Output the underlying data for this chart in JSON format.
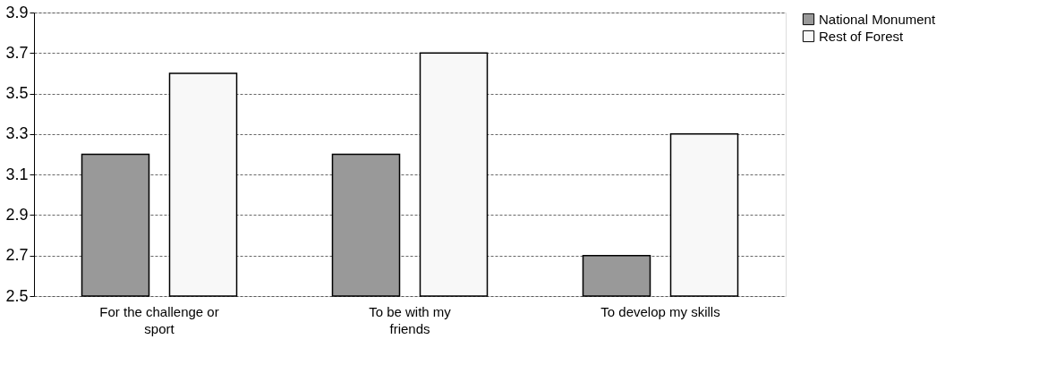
{
  "chart_data": {
    "type": "bar",
    "categories": [
      "For the challenge or sport",
      "To be with my friends",
      "To develop my skills"
    ],
    "series": [
      {
        "name": "National Monument",
        "color": "#999999",
        "values": [
          3.2,
          3.2,
          2.7
        ]
      },
      {
        "name": "Rest of Forest",
        "color": "#f8f8f8",
        "values": [
          3.6,
          3.7,
          3.3
        ]
      }
    ],
    "ylim": [
      2.5,
      3.9
    ],
    "yticks": [
      2.5,
      2.7,
      2.9,
      3.1,
      3.3,
      3.5,
      3.7,
      3.9
    ],
    "grid": "y",
    "legend": "right"
  }
}
